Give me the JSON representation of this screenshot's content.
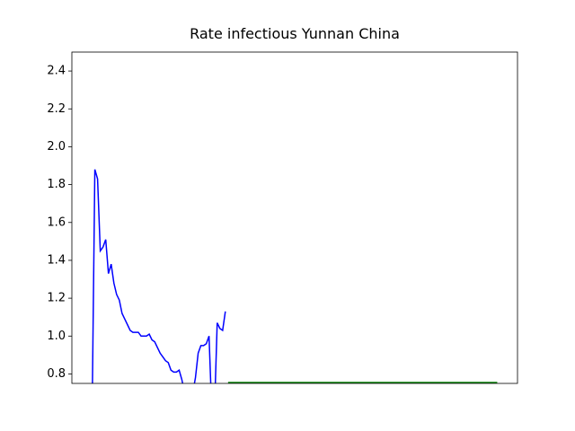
{
  "chart_data": {
    "type": "line",
    "title": "Rate infectious Yunnan China",
    "xlim": [
      -7.45,
      156.45
    ],
    "ylim": [
      0.75,
      2.5
    ],
    "yticks": [
      0.8,
      {
        "value": 1,
        "label": "1.0"
      },
      1.2,
      1.4,
      1.6,
      1.8,
      {
        "value": 2,
        "label": "2.0"
      },
      2.2,
      2.4
    ],
    "series": [
      {
        "color": "#0000ff",
        "x": [
          0,
          1,
          2,
          3,
          4,
          5,
          6,
          7,
          8,
          9,
          10,
          11,
          12,
          13,
          14,
          15,
          16,
          17,
          18,
          19,
          20,
          21,
          22,
          23,
          24,
          25,
          26,
          27,
          28,
          29,
          30,
          31,
          32,
          33,
          34,
          35,
          36,
          37,
          38,
          39,
          40,
          41,
          42,
          43,
          44,
          45,
          46,
          47,
          48,
          49
        ],
        "values": [
          0.6,
          1.88,
          1.83,
          1.45,
          1.47,
          1.51,
          1.33,
          1.38,
          1.28,
          1.22,
          1.19,
          1.12,
          1.09,
          1.06,
          1.03,
          1.02,
          1.02,
          1.02,
          1.0,
          1.0,
          1.0,
          1.01,
          0.98,
          0.97,
          0.94,
          0.91,
          0.89,
          0.87,
          0.86,
          0.82,
          0.81,
          0.81,
          0.82,
          0.77,
          0.7,
          0.68,
          0.68,
          0.7,
          0.78,
          0.91,
          0.95,
          0.95,
          0.96,
          1.0,
          0.6,
          0.6,
          1.07,
          1.04,
          1.03,
          1.13
        ]
      },
      {
        "color": "#008000",
        "x": [
          50,
          51,
          52,
          53,
          54,
          55,
          56,
          57,
          58,
          59,
          60,
          61,
          62,
          63,
          64,
          65,
          66,
          67,
          68,
          69,
          70,
          71,
          72,
          73,
          74,
          75,
          76,
          77,
          78,
          79,
          80,
          81,
          82,
          83,
          84,
          85,
          86,
          87,
          88,
          89,
          90,
          91,
          92,
          93,
          94,
          95,
          96,
          97,
          98,
          99,
          100,
          101,
          102,
          103,
          104,
          105,
          106,
          107,
          108,
          109,
          110,
          111,
          112,
          113,
          114,
          115,
          116,
          117,
          118,
          119,
          120,
          121,
          122,
          123,
          124,
          125,
          126,
          127,
          128,
          129,
          130,
          131,
          132,
          133,
          134,
          135,
          136,
          137,
          138,
          139,
          140,
          141,
          142,
          143,
          144,
          145,
          146,
          147,
          148,
          149
        ],
        "values": [
          0.755,
          0.755,
          0.755,
          0.755,
          0.755,
          0.755,
          0.755,
          0.755,
          0.755,
          0.755,
          0.755,
          0.755,
          0.755,
          0.755,
          0.755,
          0.755,
          0.755,
          0.755,
          0.755,
          0.755,
          0.755,
          0.755,
          0.755,
          0.755,
          0.755,
          0.755,
          0.755,
          0.755,
          0.755,
          0.755,
          0.755,
          0.755,
          0.755,
          0.755,
          0.755,
          0.755,
          0.755,
          0.755,
          0.755,
          0.755,
          0.755,
          0.755,
          0.755,
          0.755,
          0.755,
          0.755,
          0.755,
          0.755,
          0.755,
          0.755,
          0.755,
          0.755,
          0.755,
          0.755,
          0.755,
          0.755,
          0.755,
          0.755,
          0.755,
          0.755,
          0.755,
          0.755,
          0.755,
          0.755,
          0.755,
          0.755,
          0.755,
          0.755,
          0.755,
          0.755,
          0.755,
          0.755,
          0.755,
          0.755,
          0.755,
          0.755,
          0.755,
          0.755,
          0.755,
          0.755,
          0.755,
          0.755,
          0.755,
          0.755,
          0.755,
          0.755,
          0.755,
          0.755,
          0.755,
          0.755,
          0.755,
          0.755,
          0.755,
          0.755,
          0.755,
          0.755,
          0.755,
          0.755,
          0.755,
          0.755
        ]
      }
    ]
  }
}
